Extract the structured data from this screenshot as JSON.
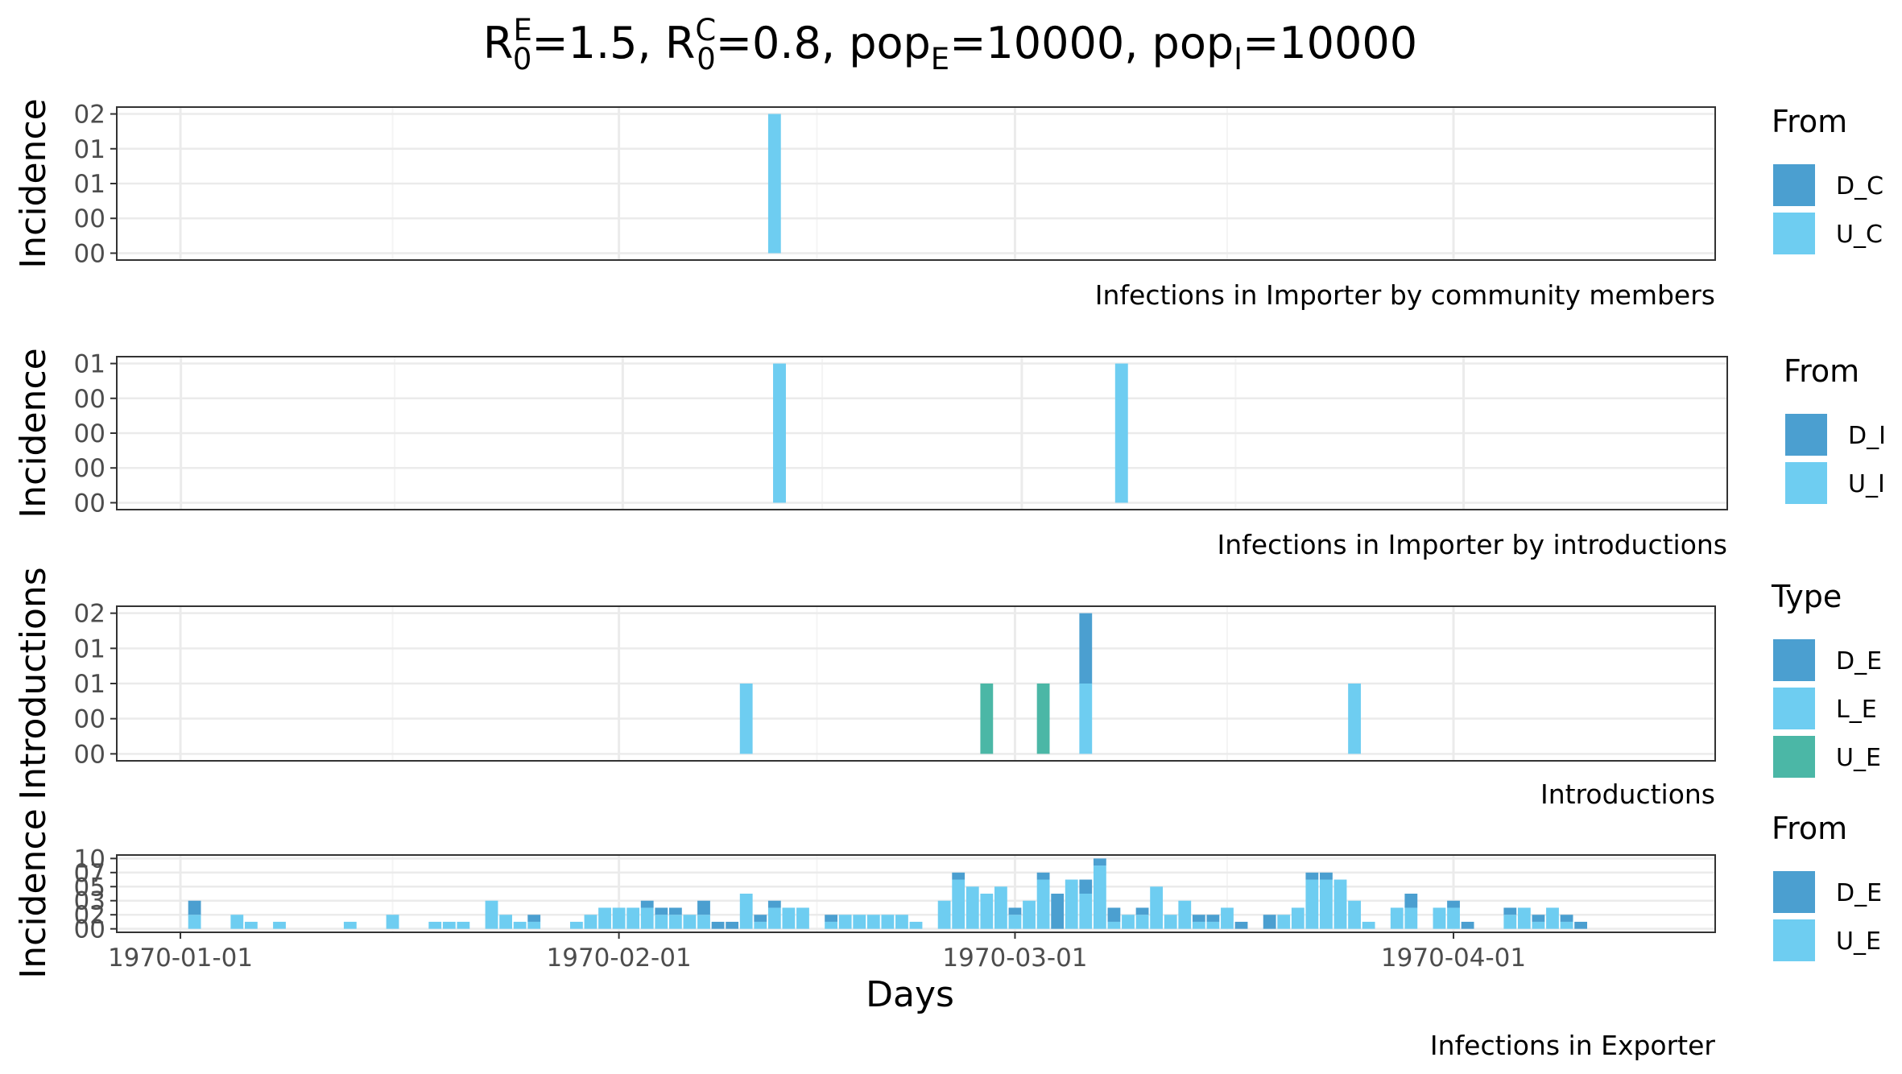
{
  "figure": {
    "title": {
      "parts": [
        {
          "t": "R",
          "k": "main"
        },
        {
          "t": "E",
          "k": "sup"
        },
        {
          "t": "0",
          "k": "sub"
        },
        {
          "t": "=1.5, R",
          "k": "main"
        },
        {
          "t": "C",
          "k": "sup"
        },
        {
          "t": "0",
          "k": "sub"
        },
        {
          "t": "=0.8, pop",
          "k": "main"
        },
        {
          "t": "E",
          "k": "sub"
        },
        {
          "t": "=10000, pop",
          "k": "main"
        },
        {
          "t": "I",
          "k": "sub"
        },
        {
          "t": "=10000",
          "k": "main"
        }
      ]
    },
    "x_axis": {
      "title": "Days",
      "ticks": [
        "1970-01-01",
        "1970-02-01",
        "1970-03-01",
        "1970-04-01"
      ]
    },
    "colors": {
      "D": "#4b9fd0",
      "U": "#6ecdf1",
      "L": "#6ecdf1",
      "U_intro": "#4bb7a6",
      "grid_major": "#ebebeb",
      "grid_minor": "#f4f4f4",
      "panel_border": "#333333",
      "tick_text": "#4d4d4d"
    }
  },
  "chart_data": [
    {
      "type": "bar",
      "stacked": true,
      "ylabel": "Incidence",
      "caption": "Infections in Importer by community members",
      "yticks": [
        "00",
        "00",
        "01",
        "01",
        "02"
      ],
      "legend": {
        "title": "From",
        "entries": [
          {
            "label": "D_C",
            "color": "#4b9fd0"
          },
          {
            "label": "U_C",
            "color": "#6ecdf1"
          }
        ]
      },
      "x_unit": "day",
      "ylim": [
        0,
        2
      ],
      "bars": [
        {
          "date": "1970-02-12",
          "D_C": 0,
          "U_C": 2
        }
      ]
    },
    {
      "type": "bar",
      "stacked": true,
      "ylabel": "Incidence",
      "caption": "Infections in Importer by introductions",
      "yticks": [
        "00",
        "00",
        "00",
        "00",
        "01"
      ],
      "legend": {
        "title": "From",
        "entries": [
          {
            "label": "D_I",
            "color": "#4b9fd0"
          },
          {
            "label": "U_I",
            "color": "#6ecdf1"
          }
        ]
      },
      "x_unit": "day",
      "ylim": [
        0,
        1
      ],
      "bars": [
        {
          "date": "1970-02-12",
          "D_I": 0,
          "U_I": 1
        },
        {
          "date": "1970-03-08",
          "D_I": 0,
          "U_I": 1
        }
      ]
    },
    {
      "type": "bar",
      "stacked": true,
      "ylabel": "Introductions",
      "caption": "Introductions",
      "yticks": [
        "00",
        "00",
        "01",
        "01",
        "02"
      ],
      "legend": {
        "title": "Type",
        "entries": [
          {
            "label": "D_E",
            "color": "#4b9fd0"
          },
          {
            "label": "L_E",
            "color": "#6ecdf1"
          },
          {
            "label": "U_E",
            "color": "#4bb7a6"
          }
        ]
      },
      "x_unit": "day",
      "ylim": [
        0,
        2
      ],
      "bars": [
        {
          "date": "1970-02-10",
          "D_E": 0,
          "L_E": 1,
          "U_E": 0
        },
        {
          "date": "1970-02-27",
          "D_E": 0,
          "L_E": 0,
          "U_E": 1
        },
        {
          "date": "1970-03-03",
          "D_E": 0,
          "L_E": 0,
          "U_E": 1
        },
        {
          "date": "1970-03-06",
          "D_E": 1,
          "L_E": 1,
          "U_E": 0
        },
        {
          "date": "1970-03-25",
          "D_E": 0,
          "L_E": 1,
          "U_E": 0
        }
      ]
    },
    {
      "type": "bar",
      "stacked": true,
      "ylabel": "Incidence",
      "caption": "Infections in Exporter",
      "yticks": [
        "00",
        "02",
        "03",
        "05",
        "07",
        "10"
      ],
      "legend": {
        "title": "From",
        "entries": [
          {
            "label": "D_E",
            "color": "#4b9fd0"
          },
          {
            "label": "U_E",
            "color": "#6ecdf1"
          }
        ]
      },
      "x_unit": "day",
      "ylim": [
        0,
        0.1
      ],
      "bars": [
        {
          "date": "1970-01-02",
          "D_E": 0.02,
          "U_E": 0.02
        },
        {
          "date": "1970-01-05",
          "D_E": 0,
          "U_E": 0.02
        },
        {
          "date": "1970-01-06",
          "D_E": 0,
          "U_E": 0.01
        },
        {
          "date": "1970-01-08",
          "D_E": 0,
          "U_E": 0.01
        },
        {
          "date": "1970-01-13",
          "D_E": 0,
          "U_E": 0.01
        },
        {
          "date": "1970-01-16",
          "D_E": 0,
          "U_E": 0.02
        },
        {
          "date": "1970-01-19",
          "D_E": 0,
          "U_E": 0.01
        },
        {
          "date": "1970-01-20",
          "D_E": 0,
          "U_E": 0.01
        },
        {
          "date": "1970-01-21",
          "D_E": 0,
          "U_E": 0.01
        },
        {
          "date": "1970-01-23",
          "D_E": 0,
          "U_E": 0.04
        },
        {
          "date": "1970-01-24",
          "D_E": 0,
          "U_E": 0.02
        },
        {
          "date": "1970-01-25",
          "D_E": 0,
          "U_E": 0.01
        },
        {
          "date": "1970-01-26",
          "D_E": 0.01,
          "U_E": 0.01
        },
        {
          "date": "1970-01-29",
          "D_E": 0,
          "U_E": 0.01
        },
        {
          "date": "1970-01-30",
          "D_E": 0,
          "U_E": 0.02
        },
        {
          "date": "1970-01-31",
          "D_E": 0,
          "U_E": 0.03
        },
        {
          "date": "1970-02-01",
          "D_E": 0,
          "U_E": 0.03
        },
        {
          "date": "1970-02-02",
          "D_E": 0,
          "U_E": 0.03
        },
        {
          "date": "1970-02-03",
          "D_E": 0.01,
          "U_E": 0.03
        },
        {
          "date": "1970-02-04",
          "D_E": 0.01,
          "U_E": 0.02
        },
        {
          "date": "1970-02-05",
          "D_E": 0.01,
          "U_E": 0.02
        },
        {
          "date": "1970-02-06",
          "D_E": 0,
          "U_E": 0.02
        },
        {
          "date": "1970-02-07",
          "D_E": 0.02,
          "U_E": 0.02
        },
        {
          "date": "1970-02-08",
          "D_E": 0.01,
          "U_E": 0
        },
        {
          "date": "1970-02-09",
          "D_E": 0.01,
          "U_E": 0
        },
        {
          "date": "1970-02-10",
          "D_E": 0,
          "U_E": 0.05
        },
        {
          "date": "1970-02-11",
          "D_E": 0.01,
          "U_E": 0.01
        },
        {
          "date": "1970-02-12",
          "D_E": 0.01,
          "U_E": 0.03
        },
        {
          "date": "1970-02-13",
          "D_E": 0,
          "U_E": 0.03
        },
        {
          "date": "1970-02-14",
          "D_E": 0,
          "U_E": 0.03
        },
        {
          "date": "1970-02-16",
          "D_E": 0.01,
          "U_E": 0.01
        },
        {
          "date": "1970-02-17",
          "D_E": 0,
          "U_E": 0.02
        },
        {
          "date": "1970-02-18",
          "D_E": 0,
          "U_E": 0.02
        },
        {
          "date": "1970-02-19",
          "D_E": 0,
          "U_E": 0.02
        },
        {
          "date": "1970-02-20",
          "D_E": 0,
          "U_E": 0.02
        },
        {
          "date": "1970-02-21",
          "D_E": 0,
          "U_E": 0.02
        },
        {
          "date": "1970-02-22",
          "D_E": 0,
          "U_E": 0.01
        },
        {
          "date": "1970-02-24",
          "D_E": 0,
          "U_E": 0.04
        },
        {
          "date": "1970-02-25",
          "D_E": 0.01,
          "U_E": 0.07
        },
        {
          "date": "1970-02-26",
          "D_E": 0,
          "U_E": 0.06
        },
        {
          "date": "1970-02-27",
          "D_E": 0,
          "U_E": 0.05
        },
        {
          "date": "1970-02-28",
          "D_E": 0,
          "U_E": 0.06
        },
        {
          "date": "1970-03-01",
          "D_E": 0.01,
          "U_E": 0.02
        },
        {
          "date": "1970-03-02",
          "D_E": 0,
          "U_E": 0.04
        },
        {
          "date": "1970-03-03",
          "D_E": 0.01,
          "U_E": 0.07
        },
        {
          "date": "1970-03-04",
          "D_E": 0.05,
          "U_E": 0
        },
        {
          "date": "1970-03-05",
          "D_E": 0,
          "U_E": 0.07
        },
        {
          "date": "1970-03-06",
          "D_E": 0.02,
          "U_E": 0.05
        },
        {
          "date": "1970-03-07",
          "D_E": 0.01,
          "U_E": 0.09
        },
        {
          "date": "1970-03-08",
          "D_E": 0.02,
          "U_E": 0.01
        },
        {
          "date": "1970-03-09",
          "D_E": 0,
          "U_E": 0.02
        },
        {
          "date": "1970-03-10",
          "D_E": 0.01,
          "U_E": 0.02
        },
        {
          "date": "1970-03-11",
          "D_E": 0,
          "U_E": 0.06
        },
        {
          "date": "1970-03-12",
          "D_E": 0,
          "U_E": 0.02
        },
        {
          "date": "1970-03-13",
          "D_E": 0,
          "U_E": 0.04
        },
        {
          "date": "1970-03-14",
          "D_E": 0.01,
          "U_E": 0.01
        },
        {
          "date": "1970-03-15",
          "D_E": 0.01,
          "U_E": 0.01
        },
        {
          "date": "1970-03-16",
          "D_E": 0,
          "U_E": 0.03
        },
        {
          "date": "1970-03-17",
          "D_E": 0.01,
          "U_E": 0
        },
        {
          "date": "1970-03-19",
          "D_E": 0.02,
          "U_E": 0
        },
        {
          "date": "1970-03-20",
          "D_E": 0,
          "U_E": 0.02
        },
        {
          "date": "1970-03-21",
          "D_E": 0,
          "U_E": 0.03
        },
        {
          "date": "1970-03-22",
          "D_E": 0.01,
          "U_E": 0.07
        },
        {
          "date": "1970-03-23",
          "D_E": 0.01,
          "U_E": 0.07
        },
        {
          "date": "1970-03-24",
          "D_E": 0,
          "U_E": 0.07
        },
        {
          "date": "1970-03-25",
          "D_E": 0,
          "U_E": 0.04
        },
        {
          "date": "1970-03-26",
          "D_E": 0,
          "U_E": 0.01
        },
        {
          "date": "1970-03-28",
          "D_E": 0,
          "U_E": 0.03
        },
        {
          "date": "1970-03-29",
          "D_E": 0.02,
          "U_E": 0.03
        },
        {
          "date": "1970-03-31",
          "D_E": 0,
          "U_E": 0.03
        },
        {
          "date": "1970-04-01",
          "D_E": 0.01,
          "U_E": 0.03
        },
        {
          "date": "1970-04-02",
          "D_E": 0.01,
          "U_E": 0
        },
        {
          "date": "1970-04-05",
          "D_E": 0.01,
          "U_E": 0.02
        },
        {
          "date": "1970-04-06",
          "D_E": 0,
          "U_E": 0.03
        },
        {
          "date": "1970-04-07",
          "D_E": 0.01,
          "U_E": 0.01
        },
        {
          "date": "1970-04-08",
          "D_E": 0,
          "U_E": 0.03
        },
        {
          "date": "1970-04-09",
          "D_E": 0.01,
          "U_E": 0.01
        },
        {
          "date": "1970-04-10",
          "D_E": 0.01,
          "U_E": 0
        }
      ]
    }
  ]
}
